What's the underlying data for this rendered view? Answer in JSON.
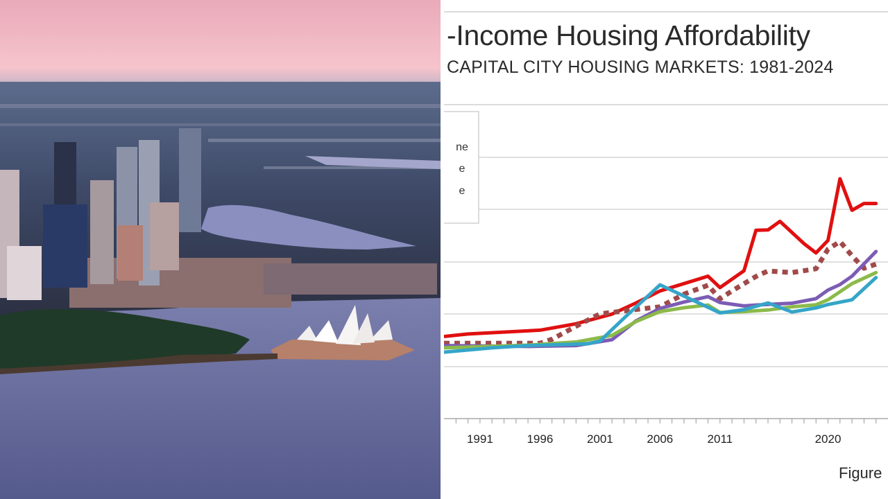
{
  "photo": {
    "subject": "Aerial view of Sydney skyline, harbour and Opera House at dusk",
    "sky_color": "#f3b8c6",
    "water_color": "#6e6f9e"
  },
  "chart_data": {
    "type": "line",
    "title": "-Income Housing Affordability",
    "subtitle": "CAPITAL CITY HOUSING MARKETS: 1981-2024",
    "figure_label": "Figure",
    "x_tick_labels": [
      "1991",
      "1996",
      "2001",
      "2006",
      "2011",
      "2020"
    ],
    "x_range": [
      1988,
      2025
    ],
    "legend_visible_text": [
      "ne",
      "e",
      "e"
    ],
    "legend_placement": "top-left",
    "grid": true,
    "series": [
      {
        "color": "#e01010",
        "style": "solid",
        "x": [
          1988,
          1990,
          1996,
          1999,
          2002,
          2004,
          2006,
          2010,
          2011,
          2013,
          2014,
          2015,
          2016,
          2018,
          2019,
          2020,
          2021,
          2022,
          2023,
          2024
        ],
        "y": [
          33.6,
          34.7,
          36.4,
          39.2,
          43.5,
          48.4,
          53.7,
          60.2,
          55.2,
          62.6,
          80.5,
          80.6,
          84.4,
          74.6,
          70.5,
          76.0,
          103.2,
          89.3,
          92.3,
          92.3
        ]
      },
      {
        "color": "#a04a4a",
        "style": "dotted",
        "x": [
          1988,
          1996,
          1997,
          1999,
          2001,
          2004,
          2006,
          2008,
          2010,
          2011,
          2012,
          2014,
          2015,
          2017,
          2019,
          2020,
          2021,
          2022,
          2023,
          2024
        ],
        "y": [
          30.6,
          30.6,
          32.4,
          38.1,
          43.6,
          45.5,
          46.7,
          52.3,
          56.2,
          50.2,
          53.7,
          60.1,
          62.5,
          61.8,
          63.5,
          72.1,
          75.5,
          69.2,
          63.7,
          65.5
        ]
      },
      {
        "color": "#7c5cb4",
        "style": "solid",
        "x": [
          1988,
          1995,
          1999,
          2002,
          2004,
          2006,
          2008,
          2010,
          2011,
          2013,
          2014,
          2017,
          2019,
          2020,
          2021,
          2022,
          2024
        ],
        "y": [
          29.6,
          29.2,
          29.6,
          32.2,
          40.5,
          46.0,
          48.8,
          51.2,
          48.6,
          47.1,
          47.5,
          48.3,
          50.3,
          54.1,
          56.5,
          60.2,
          71.1
        ]
      },
      {
        "color": "#8cba4a",
        "style": "solid",
        "x": [
          1988,
          1995,
          1999,
          2002,
          2004,
          2006,
          2008,
          2010,
          2011,
          2013,
          2015,
          2017,
          2019,
          2020,
          2022,
          2024
        ],
        "y": [
          28.6,
          29.8,
          31.2,
          34.1,
          40.2,
          44.6,
          46.3,
          47.5,
          44.2,
          44.6,
          45.3,
          46.7,
          47.6,
          49.8,
          56.9,
          61.8
        ]
      },
      {
        "color": "#35a5c8",
        "style": "solid",
        "x": [
          1988,
          1992,
          1995,
          2000,
          2001,
          2003,
          2006,
          2011,
          2013,
          2015,
          2017,
          2019,
          2020,
          2022,
          2024
        ],
        "y": [
          26.7,
          28.6,
          29.6,
          30.4,
          31.6,
          41.7,
          56.4,
          44.0,
          45.4,
          48.4,
          44.4,
          46.2,
          47.7,
          49.8,
          59.6
        ]
      }
    ]
  }
}
